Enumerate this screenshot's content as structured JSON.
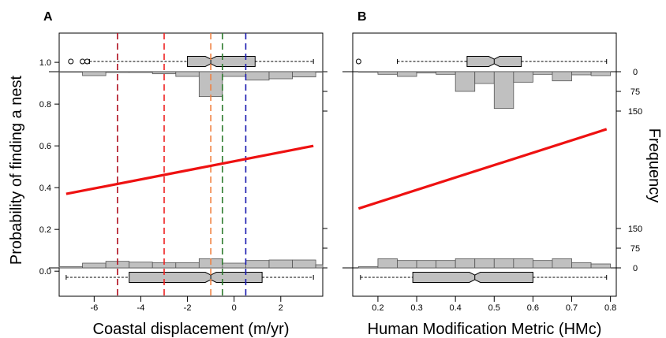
{
  "y_axis_title": "Probability of finding a nest",
  "right_axis_title": "Frequency",
  "colors": {
    "fit_line": "#ee1111",
    "hist_fill": "#c0c0c0",
    "frame": "#000000",
    "vline_darkred": "#b01020",
    "vline_red": "#ee2222",
    "vline_orange": "#f08040",
    "vline_green": "#2c7a2c",
    "vline_blue": "#1a1ab0"
  },
  "chart_data": [
    {
      "panel_label": "A",
      "type": "line",
      "xlabel": "Coastal displacement (m/yr)",
      "ylabel": "Probability of finding a nest",
      "xlim": [
        -7.5,
        3.8
      ],
      "ylim": [
        -0.12,
        1.14
      ],
      "x_ticks": [
        -6,
        -4,
        -2,
        0,
        2
      ],
      "x_tick_labels": [
        "-6",
        "-4",
        "-2",
        "0",
        "2"
      ],
      "y_ticks": [
        0.0,
        0.2,
        0.4,
        0.6,
        0.8,
        1.0
      ],
      "y_tick_labels": [
        "0.0",
        "0.2",
        "0.4",
        "0.6",
        "0.8",
        "1.0"
      ],
      "fit": {
        "x": [
          -7.2,
          3.4
        ],
        "y": [
          0.37,
          0.6
        ]
      },
      "vlines": [
        {
          "x": -5.0,
          "color": "#b01020"
        },
        {
          "x": -3.0,
          "color": "#ee2222"
        },
        {
          "x": -1.0,
          "color": "#f08040"
        },
        {
          "x": -0.5,
          "color": "#2c7a2c"
        },
        {
          "x": 0.5,
          "color": "#1a1ab0"
        }
      ],
      "hist_bin_edges": [
        -7.5,
        -6.5,
        -5.5,
        -4.5,
        -3.5,
        -2.5,
        -1.5,
        -0.5,
        0.5,
        1.5,
        2.5,
        3.5,
        3.8
      ],
      "hist_top_counts": [
        2,
        15,
        3,
        3,
        8,
        18,
        95,
        18,
        32,
        27,
        20,
        2
      ],
      "hist_bottom_counts": [
        5,
        18,
        25,
        22,
        20,
        20,
        35,
        18,
        28,
        30,
        30,
        12
      ],
      "box_top": {
        "whisker_low": -6.2,
        "q1": -2.0,
        "median": -1.0,
        "q3": 0.9,
        "whisker_high": 3.4,
        "outliers": [
          -7.0,
          -6.5,
          -6.3
        ]
      },
      "box_bottom": {
        "whisker_low": -7.2,
        "q1": -4.5,
        "median": -1.0,
        "q3": 1.2,
        "whisker_high": 3.4,
        "outliers": []
      }
    },
    {
      "panel_label": "B",
      "type": "line",
      "xlabel": "Human Modification Metric (HMc)",
      "ylabel": "Probability of finding a nest",
      "y2label": "Frequency",
      "xlim": [
        0.135,
        0.815
      ],
      "ylim": [
        -0.12,
        1.14
      ],
      "x_ticks": [
        0.2,
        0.3,
        0.4,
        0.5,
        0.6,
        0.7,
        0.8
      ],
      "x_tick_labels": [
        "0.2",
        "0.3",
        "0.4",
        "0.5",
        "0.6",
        "0.7",
        "0.8"
      ],
      "y2_ticks_top": [
        0,
        75,
        150
      ],
      "y2_tick_labels_top": [
        "0",
        "75",
        "150"
      ],
      "y2_ticks_bottom": [
        0,
        75,
        150
      ],
      "y2_tick_labels_bottom": [
        "0",
        "75",
        "150"
      ],
      "fit": {
        "x": [
          0.15,
          0.79
        ],
        "y": [
          0.3,
          0.68
        ]
      },
      "hist_bin_edges": [
        0.15,
        0.2,
        0.25,
        0.3,
        0.35,
        0.4,
        0.45,
        0.5,
        0.55,
        0.6,
        0.65,
        0.7,
        0.75,
        0.8
      ],
      "hist_top_counts": [
        2,
        10,
        18,
        5,
        10,
        75,
        45,
        140,
        40,
        10,
        35,
        12,
        15
      ],
      "hist_bottom_counts": [
        5,
        35,
        28,
        28,
        28,
        35,
        35,
        35,
        35,
        28,
        35,
        20,
        15
      ],
      "box_top": {
        "whisker_low": 0.25,
        "q1": 0.43,
        "median": 0.5,
        "q3": 0.57,
        "whisker_high": 0.79,
        "outliers": [
          0.15
        ]
      },
      "box_bottom": {
        "whisker_low": 0.155,
        "q1": 0.29,
        "median": 0.45,
        "q3": 0.6,
        "whisker_high": 0.79,
        "outliers": []
      }
    }
  ]
}
